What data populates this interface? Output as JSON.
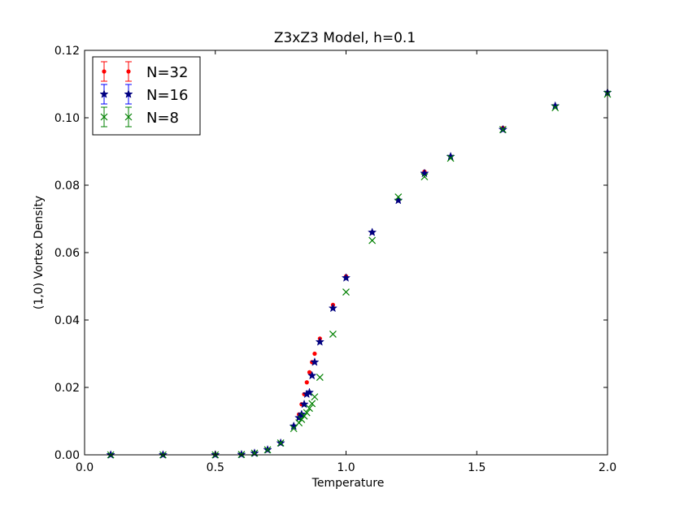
{
  "chart_data": {
    "type": "scatter",
    "title": "Z3xZ3 Model, h=0.1",
    "xlabel": "Temperature",
    "ylabel": "(1,0) Vortex Density",
    "xlim": [
      0.0,
      2.0
    ],
    "ylim": [
      0.0,
      0.12
    ],
    "xticks": [
      "0.0",
      "0.5",
      "1.0",
      "1.5",
      "2.0"
    ],
    "yticks": [
      "0.00",
      "0.02",
      "0.04",
      "0.06",
      "0.08",
      "0.10",
      "0.12"
    ],
    "grid": false,
    "legend_position": "top-left",
    "series": [
      {
        "name": "N=32",
        "color": "#ff0000",
        "marker": "dot",
        "x": [
          0.1,
          0.3,
          0.5,
          0.6,
          0.65,
          0.7,
          0.75,
          0.8,
          0.82,
          0.83,
          0.84,
          0.85,
          0.86,
          0.87,
          0.88,
          0.9,
          0.95,
          1.0,
          1.1,
          1.2,
          1.3,
          1.4,
          1.6,
          1.8,
          2.0
        ],
        "y": [
          0.0,
          0.0,
          0.0,
          0.0001,
          0.0005,
          0.0015,
          0.0035,
          0.0085,
          0.012,
          0.015,
          0.018,
          0.0215,
          0.0245,
          0.0275,
          0.03,
          0.0345,
          0.0445,
          0.053,
          0.066,
          0.0755,
          0.084,
          0.0885,
          0.097,
          0.1035,
          0.1075
        ]
      },
      {
        "name": "N=16",
        "color": "#000080",
        "marker": "star",
        "x": [
          0.1,
          0.3,
          0.5,
          0.6,
          0.65,
          0.7,
          0.75,
          0.8,
          0.82,
          0.83,
          0.84,
          0.85,
          0.86,
          0.87,
          0.88,
          0.9,
          0.95,
          1.0,
          1.1,
          1.2,
          1.3,
          1.4,
          1.6,
          1.8,
          2.0
        ],
        "y": [
          0.0,
          0.0,
          0.0,
          0.0001,
          0.0005,
          0.0015,
          0.0035,
          0.0085,
          0.011,
          0.012,
          0.015,
          0.018,
          0.0185,
          0.0235,
          0.0275,
          0.0335,
          0.0435,
          0.0525,
          0.066,
          0.0755,
          0.0835,
          0.0885,
          0.0965,
          0.1035,
          0.1075
        ]
      },
      {
        "name": "N=8",
        "color": "#008000",
        "marker": "x",
        "x": [
          0.1,
          0.3,
          0.5,
          0.6,
          0.65,
          0.7,
          0.75,
          0.8,
          0.82,
          0.83,
          0.84,
          0.85,
          0.86,
          0.87,
          0.88,
          0.9,
          0.95,
          1.0,
          1.1,
          1.2,
          1.3,
          1.4,
          1.6,
          1.8,
          2.0
        ],
        "y": [
          0.0,
          0.0,
          0.0,
          0.0001,
          0.0005,
          0.0015,
          0.0035,
          0.0078,
          0.0095,
          0.0105,
          0.0115,
          0.0125,
          0.0138,
          0.0152,
          0.0172,
          0.023,
          0.0358,
          0.0483,
          0.0636,
          0.0765,
          0.0825,
          0.088,
          0.0965,
          0.103,
          0.107
        ]
      }
    ]
  }
}
